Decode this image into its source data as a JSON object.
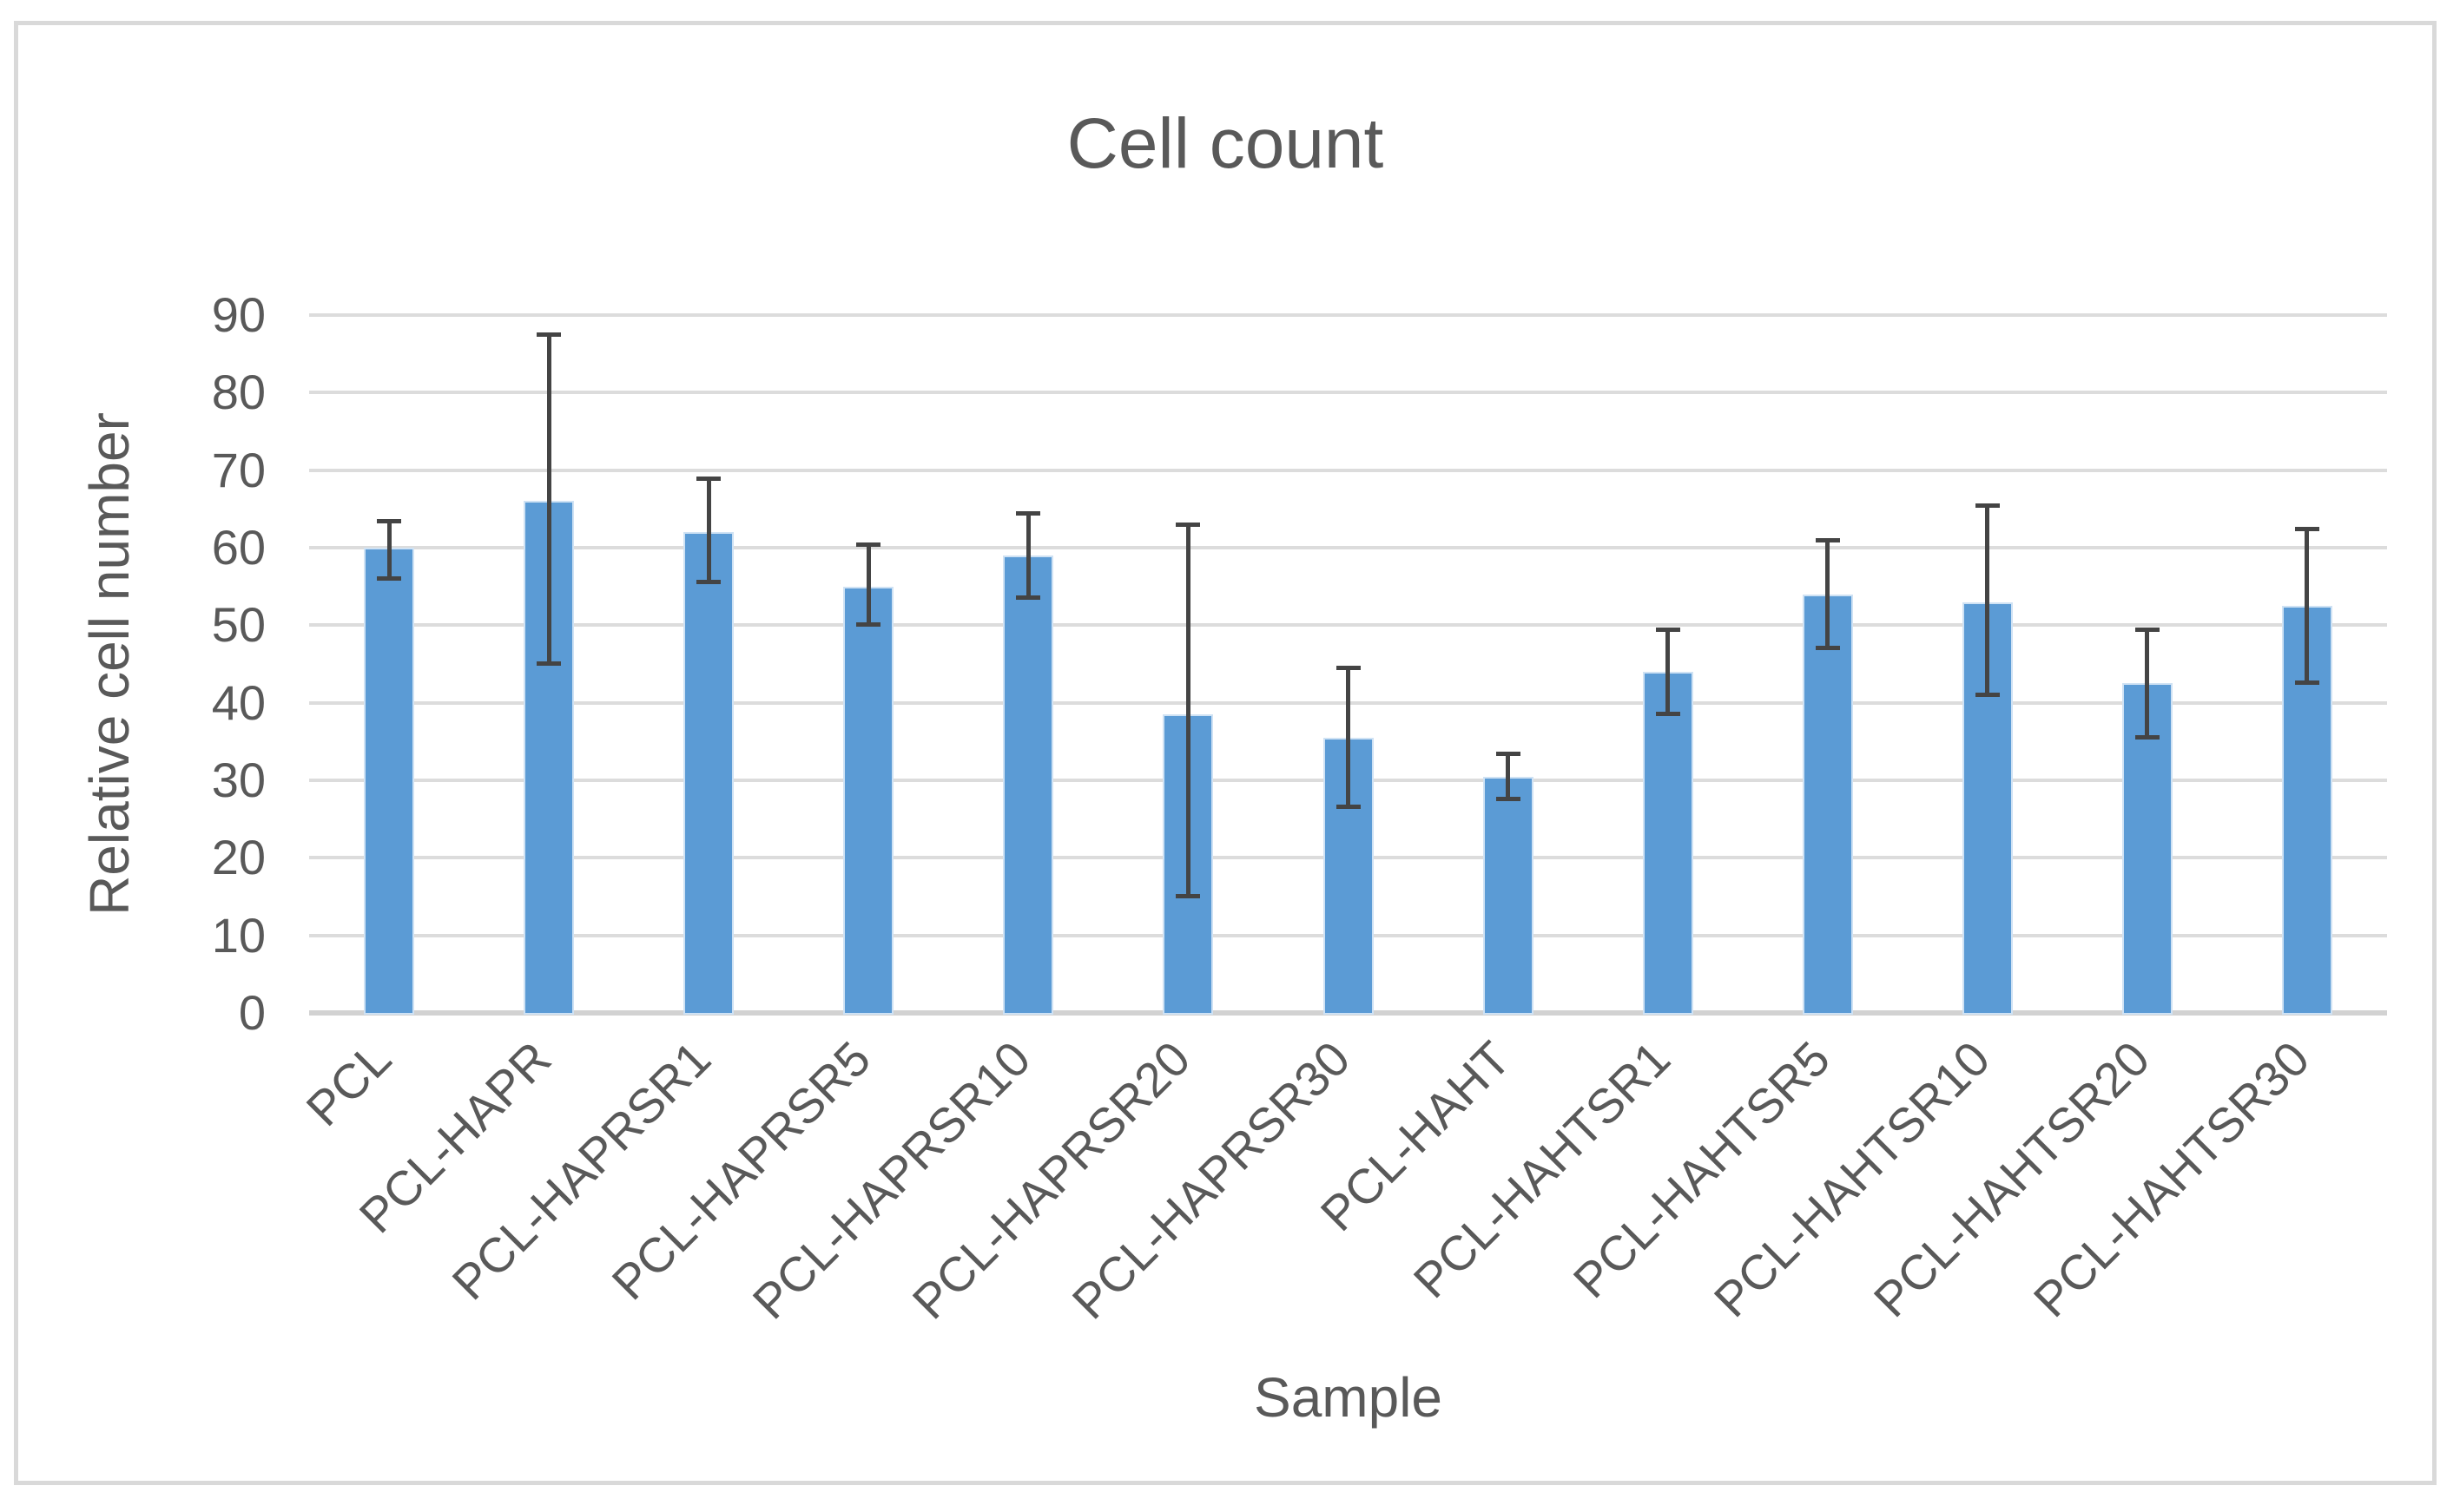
{
  "figure": {
    "title": "Cell count"
  },
  "chart_data": {
    "type": "bar",
    "title": "Cell count",
    "xlabel": "Sample",
    "ylabel": "Relative cell number",
    "ylim": [
      0,
      90
    ],
    "yticks": [
      0,
      10,
      20,
      30,
      40,
      50,
      60,
      70,
      80,
      90
    ],
    "grid": true,
    "legend": false,
    "categories": [
      "PCL",
      "PCL-HAPR",
      "PCL-HAPRSR1",
      "PCL-HAPRSR5",
      "PCL-HAPRSR10",
      "PCL-HAPRSR20",
      "PCL-HAPRSR30",
      "PCL-HAHT",
      "PCL-HAHTSR1",
      "PCL-HAHTSR5",
      "PCL-HAHTSR10",
      "PCL-HAHTSR20",
      "PCL-HAHTSR30"
    ],
    "series": [
      {
        "name": "Relative cell number",
        "values": [
          60,
          66,
          62,
          55,
          59,
          38.5,
          35.5,
          30.5,
          44,
          54,
          53,
          42.5,
          52.5
        ],
        "error_bar_top": [
          63.5,
          87.5,
          69,
          60.5,
          64.5,
          63,
          44.5,
          33.5,
          49.5,
          61,
          65.5,
          49.5,
          62.5
        ],
        "error_bar_bottom": [
          56,
          45,
          55.5,
          50,
          53.5,
          15,
          26.5,
          27.5,
          38.5,
          47,
          41,
          35.5,
          42.5
        ]
      }
    ],
    "colors": {
      "bar_fill": "#5B9BD5",
      "bar_edge": "#CFE2F4",
      "error_bar": "#444444",
      "gridline": "#DCDCDC",
      "axis_line": "#D2D2D2",
      "text": "#595959",
      "frame_border": "#D9D9D9",
      "background": "#FFFFFF"
    }
  }
}
